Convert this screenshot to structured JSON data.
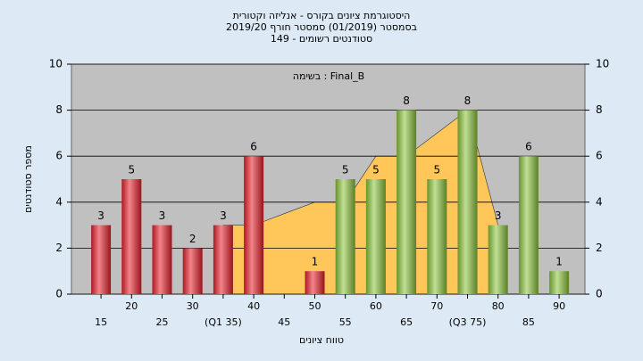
{
  "chart_data": {
    "type": "bar",
    "title": [
      "היסטוגרמת ציונים בקורס - אנליזה וקטורית",
      "בסמסטר  (01/2019)  סמסטר חורף 2019/20",
      "סטודנטים רשומים - 149"
    ],
    "annotation": "בשימה : Final_B",
    "ylabel": "מספר סטודנטים",
    "xlabel": "טווח ציונים",
    "categories": [
      "15",
      "20",
      "25",
      "30",
      "(Q1 35)",
      "40",
      "45",
      "50",
      "55",
      "60",
      "65",
      "70",
      "(Q3 75)",
      "80",
      "85",
      "90"
    ],
    "values": [
      3,
      5,
      3,
      2,
      3,
      6,
      null,
      1,
      5,
      5,
      8,
      5,
      8,
      3,
      6,
      1
    ],
    "colors": [
      "#e8202a",
      "#e8202a",
      "#e8202a",
      "#e8202a",
      "#e8202a",
      "#e8202a",
      "#e8202a",
      "#e8202a",
      "#8cc43c",
      "#8cc43c",
      "#8cc43c",
      "#8cc43c",
      "#8cc43c",
      "#8cc43c",
      "#8cc43c",
      "#8cc43c"
    ],
    "overlay": {
      "type": "area",
      "color": "#ffc65a",
      "values": [
        null,
        null,
        null,
        null,
        3,
        3,
        3.5,
        4,
        4,
        6,
        6,
        7,
        8,
        3,
        null,
        null
      ]
    },
    "ylim": [
      0,
      10
    ],
    "yticks": [
      0,
      2,
      4,
      6,
      8,
      10
    ],
    "y2lim": [
      0,
      10
    ],
    "y2ticks": [
      0,
      2,
      4,
      6,
      8,
      10
    ],
    "grid": true
  }
}
